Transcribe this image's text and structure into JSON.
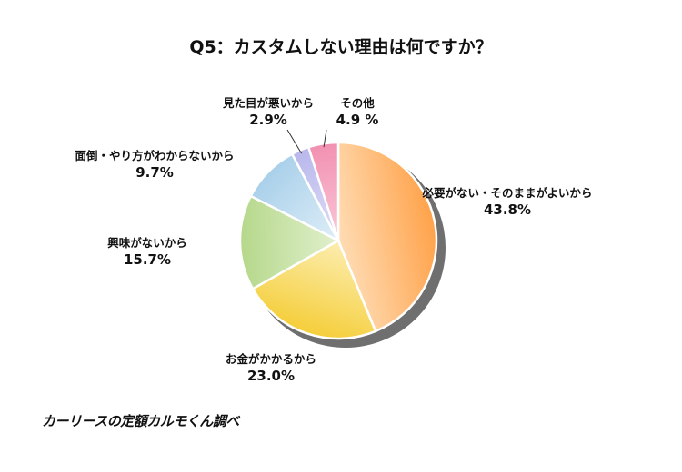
{
  "chart_data": {
    "type": "pie",
    "title": "Q5：カスタムしない理由は何ですか？",
    "slices": [
      {
        "label": "必要がない・そのままがよいから",
        "value": 43.8,
        "display": "43.8%",
        "color_dark": "#FFA24A",
        "color_light": "#FFE7C8"
      },
      {
        "label": "お金がかかるから",
        "value": 23.0,
        "display": "23.0%",
        "color_dark": "#F5CE3A",
        "color_light": "#FDF3C6"
      },
      {
        "label": "興味がないから",
        "value": 15.7,
        "display": "15.7%",
        "color_dark": "#B5D88A",
        "color_light": "#E9F4DA"
      },
      {
        "label": "面倒・やり方がわからないから",
        "value": 9.7,
        "display": "9.7%",
        "color_dark": "#A9D0EA",
        "color_light": "#E8F3FA"
      },
      {
        "label": "見た目が悪いから",
        "value": 2.9,
        "display": "2.9%",
        "color_dark": "#B9B7EC",
        "color_light": "#E6E5F9"
      },
      {
        "label": "その他",
        "value": 4.9,
        "display": "4.9 %",
        "color_dark": "#F290B0",
        "color_light": "#FBD3E0"
      }
    ]
  },
  "source_note": "カーリースの定額カルモくん調べ"
}
